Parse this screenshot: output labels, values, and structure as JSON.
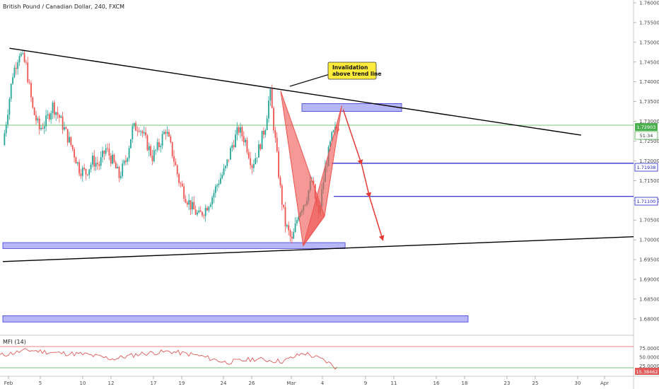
{
  "header": {
    "title": "British Pound / Canadian Dollar, 240, FXCM"
  },
  "chart_data": {
    "type": "candlestick",
    "symbol": "GBPCAD",
    "title": "British Pound / Canadian Dollar, 240, FXCM",
    "ylim": [
      1.678,
      1.76
    ],
    "y_ticks": [
      "1.76000",
      "1.75500",
      "1.75000",
      "1.74500",
      "1.74000",
      "1.73500",
      "1.73000",
      "1.72500",
      "1.72000",
      "1.71500",
      "1.71000",
      "1.70500",
      "1.70000",
      "1.69500",
      "1.69000",
      "1.68500",
      "1.68000"
    ],
    "x_ticks": [
      "Feb",
      "5",
      "10",
      "12",
      "17",
      "19",
      "24",
      "26",
      "Mar",
      "4",
      "9",
      "11",
      "16",
      "18",
      "23",
      "25",
      "30",
      "Apr"
    ],
    "current_price": "1.72903",
    "countdown": "51:34",
    "price_path": [
      [
        0,
        1.724
      ],
      [
        1.5,
        1.742
      ],
      [
        2.5,
        1.7475
      ],
      [
        3.5,
        1.744
      ],
      [
        4.5,
        1.733
      ],
      [
        5.5,
        1.728
      ],
      [
        6.5,
        1.73
      ],
      [
        7.5,
        1.734
      ],
      [
        8.5,
        1.731
      ],
      [
        9.5,
        1.727
      ],
      [
        10.5,
        1.723
      ],
      [
        11.5,
        1.718
      ],
      [
        12.5,
        1.717
      ],
      [
        13.5,
        1.72
      ],
      [
        14.5,
        1.719
      ],
      [
        15.5,
        1.723
      ],
      [
        16.5,
        1.72
      ],
      [
        17.5,
        1.716
      ],
      [
        18.5,
        1.72
      ],
      [
        19.5,
        1.728
      ],
      [
        20.5,
        1.729
      ],
      [
        21.5,
        1.725
      ],
      [
        22.5,
        1.721
      ],
      [
        23.5,
        1.724
      ],
      [
        24.5,
        1.728
      ],
      [
        25.5,
        1.722
      ],
      [
        26.5,
        1.715
      ],
      [
        27.5,
        1.711
      ],
      [
        28.5,
        1.708
      ],
      [
        29.5,
        1.706
      ],
      [
        30.5,
        1.708
      ],
      [
        31.5,
        1.711
      ],
      [
        32.5,
        1.715
      ],
      [
        33.5,
        1.718
      ],
      [
        34.5,
        1.724
      ],
      [
        35.5,
        1.728
      ],
      [
        36.5,
        1.725
      ],
      [
        37.5,
        1.719
      ],
      [
        38.5,
        1.723
      ],
      [
        39.5,
        1.729
      ],
      [
        40.2,
        1.7375
      ],
      [
        41,
        1.725
      ],
      [
        41.8,
        1.712
      ],
      [
        42.5,
        1.704
      ],
      [
        43.5,
        1.6995
      ],
      [
        44.5,
        1.707
      ],
      [
        45.5,
        1.71
      ],
      [
        46.5,
        1.715
      ],
      [
        47.5,
        1.706
      ],
      [
        48.5,
        1.718
      ],
      [
        49.5,
        1.726
      ],
      [
        50.5,
        1.729
      ]
    ],
    "horizontal_levels": [
      {
        "label": "1.71938",
        "value": 1.71938,
        "x_start": 49.5
      },
      {
        "label": "1.71100",
        "value": 1.711,
        "x_start": 49.8
      }
    ],
    "reference_line": {
      "value": 1.72903,
      "color": "#4caf50"
    },
    "zones": [
      {
        "name": "upper-resistance",
        "x": [
          45,
          60
        ],
        "y": [
          1.7325,
          1.7345
        ]
      },
      {
        "name": "lower-support",
        "x": [
          0,
          51.5
        ],
        "y": [
          1.6978,
          1.6993
        ]
      },
      {
        "name": "bottom-band",
        "x": [
          0,
          70
        ],
        "y": [
          1.6792,
          1.6808
        ]
      }
    ],
    "trend_lines": [
      {
        "name": "upper-trend",
        "from": [
          1,
          1.7485
        ],
        "to": [
          87,
          1.7265
        ]
      },
      {
        "name": "lower-trend",
        "from": [
          0,
          1.6945
        ],
        "to": [
          95,
          1.7008
        ]
      }
    ],
    "harmonic_pattern": {
      "points": [
        [
          41.8,
          1.7377
        ],
        [
          45.2,
          1.6985
        ],
        [
          48.4,
          1.706
        ],
        [
          51,
          1.734
        ]
      ]
    },
    "projection_arrows": [
      [
        [
          51.2,
          1.733
        ],
        [
          54,
          1.719
        ]
      ],
      [
        [
          54,
          1.719
        ],
        [
          55.2,
          1.7107
        ]
      ],
      [
        [
          55.2,
          1.7107
        ],
        [
          57.2,
          1.6998
        ]
      ]
    ],
    "annotation": {
      "text_line1": "Invalidation",
      "text_line2": "above trend line",
      "color": "#ffeb3b"
    },
    "colors": {
      "up": "#26a69a",
      "down": "#ef5350",
      "zone": "#7b7bf0",
      "level": "#1e1ecc",
      "pattern": "#ef5350"
    }
  },
  "mfi": {
    "label": "MFI (14)",
    "ticks": [
      "75.00000",
      "50.00000",
      "25.00000"
    ],
    "current_value": "15.38462",
    "color": "#e05a5a"
  }
}
